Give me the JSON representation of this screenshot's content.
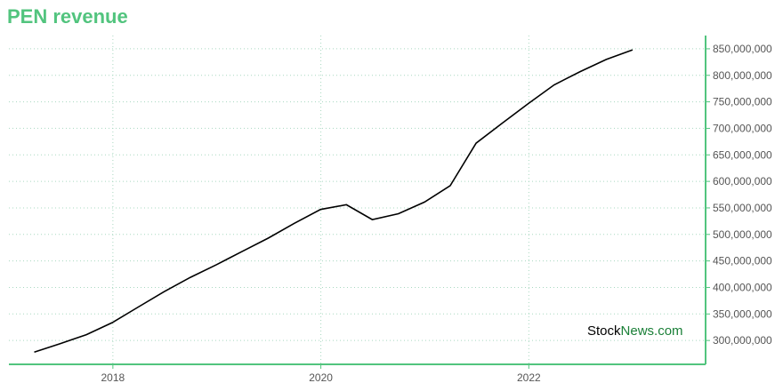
{
  "title": "PEN revenue",
  "watermark": {
    "part1": "Stock",
    "part2": "News.com"
  },
  "colors": {
    "accent": "#52c47e",
    "line": "#000000",
    "grid": "#a8d8c0",
    "wm1": "#000000",
    "wm2": "#1a7f37"
  },
  "chart_data": {
    "type": "line",
    "title": "PEN revenue",
    "xlabel": "",
    "ylabel": "",
    "x_ticks": [
      "2018",
      "2020",
      "2022"
    ],
    "x_tick_years": [
      2018,
      2020,
      2022
    ],
    "xlim": [
      2017.0,
      2023.7
    ],
    "ylim": [
      255000000,
      875000000
    ],
    "y_ticks": [
      300000000,
      350000000,
      400000000,
      450000000,
      500000000,
      550000000,
      600000000,
      650000000,
      700000000,
      750000000,
      800000000,
      850000000
    ],
    "y_tick_labels": [
      "300,000,000",
      "350,000,000",
      "400,000,000",
      "450,000,000",
      "500,000,000",
      "550,000,000",
      "600,000,000",
      "650,000,000",
      "700,000,000",
      "750,000,000",
      "800,000,000",
      "850,000,000"
    ],
    "grid": true,
    "series": [
      {
        "name": "",
        "x": [
          "2017-03-31",
          "2017-06-30",
          "2017-09-30",
          "2017-12-31",
          "2018-03-31",
          "2018-06-30",
          "2018-09-30",
          "2018-12-31",
          "2019-03-31",
          "2019-06-30",
          "2019-09-30",
          "2019-12-31",
          "2020-03-31",
          "2020-06-30",
          "2020-09-30",
          "2020-12-31",
          "2021-03-31",
          "2021-06-30",
          "2021-09-30",
          "2021-12-31",
          "2022-03-31",
          "2022-06-30",
          "2022-09-30",
          "2022-12-31"
        ],
        "values": [
          278000000,
          294000000,
          311000000,
          334000000,
          363000000,
          392000000,
          419000000,
          443000000,
          468000000,
          493000000,
          521000000,
          547000000,
          556000000,
          528000000,
          539000000,
          561000000,
          592000000,
          672000000,
          710000000,
          747000000,
          782000000,
          807000000,
          830000000,
          848000000
        ]
      }
    ]
  }
}
